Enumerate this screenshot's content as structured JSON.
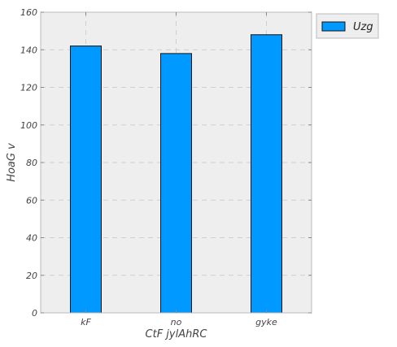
{
  "chart_data": {
    "type": "bar",
    "categories": [
      "kF",
      "no",
      "gyke"
    ],
    "series": [
      {
        "name": "Uzg",
        "values": [
          142,
          138,
          148
        ]
      }
    ],
    "xlabel": "CtF jylAhRC",
    "ylabel": "HoaG v",
    "ylim": [
      0,
      160
    ],
    "yticks": [
      0,
      20,
      40,
      60,
      80,
      100,
      120,
      140,
      160
    ],
    "grid": true,
    "legend": "outside-top-right",
    "colors": {
      "bar": "#0099ff",
      "plot_bg": "#eeeeee",
      "grid": "#cfcfcf",
      "frame": "#bbbbbb"
    }
  }
}
